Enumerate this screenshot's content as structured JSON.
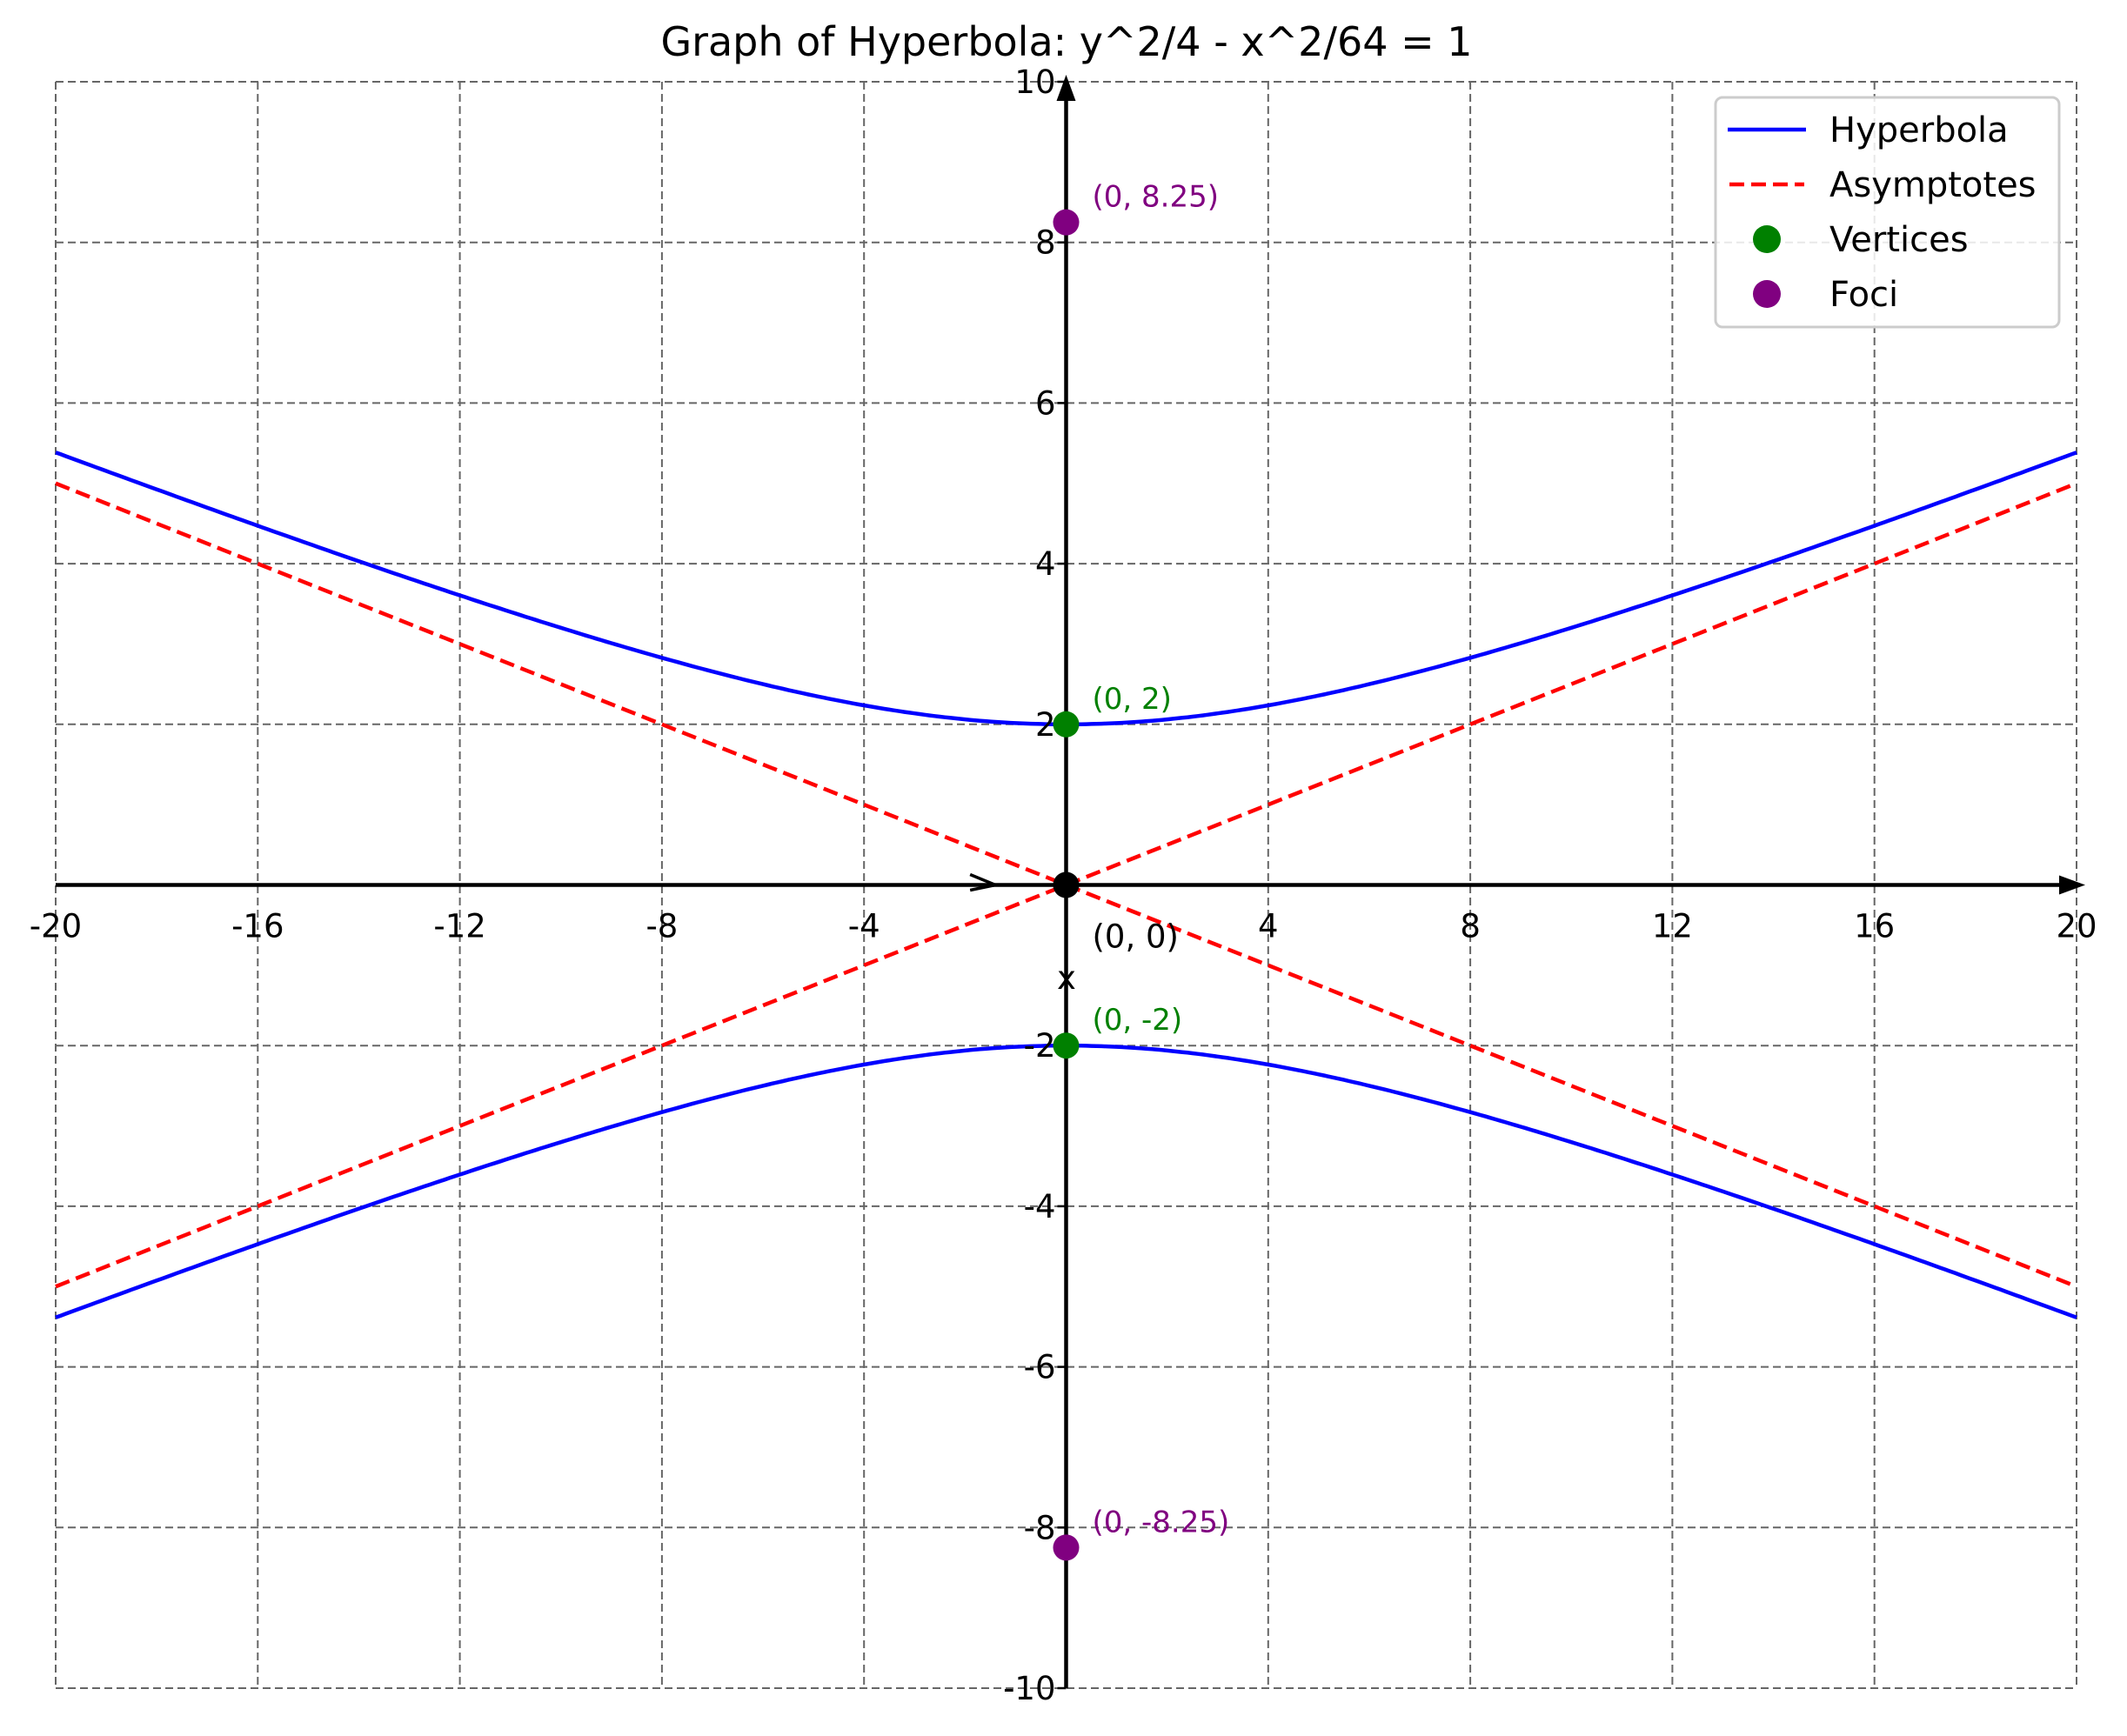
{
  "chart_data": {
    "type": "line",
    "title": "Graph of Hyperbola: y^2/4 - x^2/64 = 1",
    "xlabel": "x",
    "ylabel": "",
    "xlim": [
      -20,
      20
    ],
    "ylim": [
      -10,
      10
    ],
    "xticks": [
      -20,
      -16,
      -12,
      -8,
      -4,
      4,
      8,
      12,
      16,
      20
    ],
    "yticks": [
      -10,
      -8,
      -6,
      -4,
      -2,
      2,
      4,
      6,
      8,
      10
    ],
    "grid": true,
    "legend_position": "top-right",
    "series": [
      {
        "name": "Hyperbola",
        "kind": "curve",
        "equation": "y^2/4 - x^2/64 = 1",
        "color": "#0000ff",
        "style": "solid"
      },
      {
        "name": "Asymptotes",
        "kind": "lines",
        "slopes": [
          0.25,
          -0.25
        ],
        "color": "#ff0000",
        "style": "dashed"
      },
      {
        "name": "Vertices",
        "kind": "points",
        "points": [
          [
            0,
            2
          ],
          [
            0,
            -2
          ]
        ],
        "color": "#008000"
      },
      {
        "name": "Foci",
        "kind": "points",
        "points": [
          [
            0,
            8.25
          ],
          [
            0,
            -8.25
          ]
        ],
        "color": "#800080"
      }
    ],
    "center": {
      "point": [
        0,
        0
      ],
      "color": "#000000"
    },
    "annotations": [
      {
        "text": "(0, 8.25)",
        "at": [
          0,
          8.25
        ],
        "color": "#800080"
      },
      {
        "text": "(0, 2)",
        "at": [
          0,
          2
        ],
        "color": "#008000"
      },
      {
        "text": "(0, 0)",
        "at": [
          0,
          0
        ],
        "color": "#000000"
      },
      {
        "text": "(0, -2)",
        "at": [
          0,
          -2
        ],
        "color": "#008000"
      },
      {
        "text": "(0, -8.25)",
        "at": [
          0,
          -8.25
        ],
        "color": "#800080"
      }
    ]
  }
}
